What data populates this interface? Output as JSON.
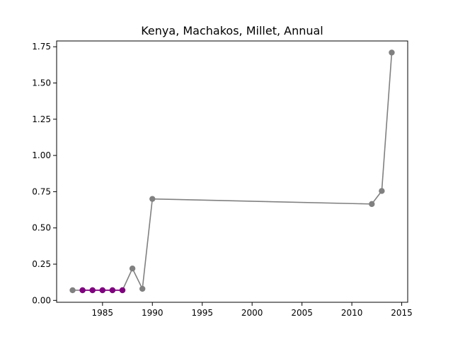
{
  "chart_data": {
    "type": "line",
    "title": "Kenya, Machakos, Millet, Annual",
    "xlabel": "",
    "ylabel": "",
    "xlim": [
      1980.4,
      2015.6
    ],
    "ylim": [
      -0.013,
      1.79
    ],
    "grid": false,
    "x_ticks": [
      1985,
      1990,
      1995,
      2000,
      2005,
      2010,
      2015
    ],
    "x_tick_labels": [
      "1985",
      "1990",
      "1995",
      "2000",
      "2005",
      "2010",
      "2015"
    ],
    "y_ticks": [
      0.0,
      0.25,
      0.5,
      0.75,
      1.0,
      1.25,
      1.5,
      1.75
    ],
    "y_tick_labels": [
      "0.00",
      "0.25",
      "0.50",
      "0.75",
      "1.00",
      "1.25",
      "1.50",
      "1.75"
    ],
    "series": [
      {
        "color": "#808080",
        "style": "line-with-markers",
        "x": [
          1982,
          1983,
          1984,
          1985,
          1986,
          1987,
          1988,
          1989,
          1990,
          2012,
          2013,
          2014
        ],
        "y": [
          0.07,
          0.07,
          0.07,
          0.07,
          0.07,
          0.07,
          0.22,
          0.08,
          0.7,
          0.665,
          0.755,
          1.71
        ]
      },
      {
        "color": "#800080",
        "style": "line-with-markers",
        "x": [
          1983,
          1984,
          1985,
          1986,
          1987
        ],
        "y": [
          0.07,
          0.07,
          0.07,
          0.07,
          0.07
        ]
      }
    ]
  }
}
